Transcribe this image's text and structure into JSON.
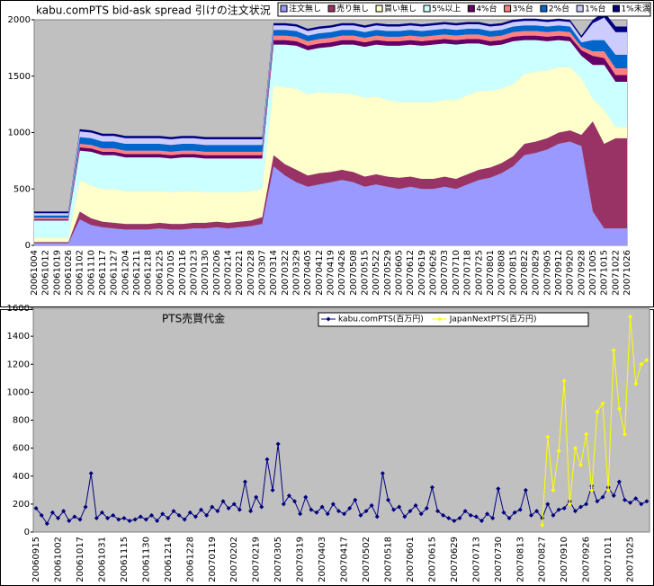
{
  "chart_data": [
    {
      "type": "stacked-area",
      "title": "kabu.comPTS bid-ask spread 引けの注文状況",
      "categories": [
        "20061004",
        "20061012",
        "20061019",
        "20061026",
        "20061102",
        "20061110",
        "20061117",
        "20061127",
        "20061204",
        "20061211",
        "20061218",
        "20061225",
        "20070105",
        "20070116",
        "20070123",
        "20070130",
        "20070206",
        "20070214",
        "20070221",
        "20070228",
        "20070307",
        "20070314",
        "20070322",
        "20070329",
        "20070405",
        "20070412",
        "20070419",
        "20070426",
        "20070508",
        "20070515",
        "20070522",
        "20070529",
        "20070605",
        "20070612",
        "20070619",
        "20070626",
        "20070703",
        "20070710",
        "20070718",
        "20070725",
        "20070801",
        "20070808",
        "20070815",
        "20070822",
        "20070829",
        "20070905",
        "20070912",
        "20070920",
        "20070928",
        "20071005",
        "20071015",
        "20071022",
        "20071026"
      ],
      "ylim": [
        0,
        2000
      ],
      "yticks": [
        0,
        500,
        1000,
        1500,
        2000
      ],
      "grid": false,
      "legend": "top-right",
      "series": [
        {
          "name": "注文無し",
          "color": "#9999ff",
          "values": [
            20,
            20,
            20,
            20,
            230,
            180,
            160,
            150,
            140,
            140,
            140,
            150,
            140,
            140,
            150,
            150,
            160,
            150,
            160,
            170,
            190,
            700,
            620,
            560,
            520,
            540,
            560,
            580,
            560,
            520,
            540,
            520,
            500,
            520,
            500,
            500,
            520,
            500,
            540,
            580,
            600,
            640,
            700,
            800,
            820,
            850,
            900,
            920,
            880,
            300,
            150,
            150,
            150
          ]
        },
        {
          "name": "売り無し",
          "color": "#993366",
          "values": [
            10,
            10,
            10,
            10,
            70,
            60,
            50,
            50,
            50,
            50,
            50,
            50,
            50,
            50,
            50,
            50,
            50,
            50,
            50,
            50,
            60,
            100,
            100,
            110,
            100,
            100,
            90,
            90,
            90,
            90,
            90,
            90,
            100,
            90,
            90,
            90,
            90,
            90,
            90,
            90,
            90,
            90,
            90,
            100,
            100,
            100,
            100,
            100,
            100,
            800,
            750,
            800,
            800
          ]
        },
        {
          "name": "買い無し",
          "color": "#ffffcc",
          "values": [
            40,
            40,
            40,
            40,
            280,
            290,
            290,
            300,
            290,
            290,
            290,
            280,
            280,
            290,
            280,
            270,
            260,
            270,
            260,
            260,
            250,
            620,
            680,
            720,
            720,
            720,
            700,
            680,
            690,
            700,
            690,
            680,
            670,
            660,
            680,
            680,
            680,
            700,
            700,
            700,
            680,
            660,
            640,
            620,
            620,
            600,
            580,
            560,
            500,
            200,
            300,
            100,
            100
          ]
        },
        {
          "name": "5%以上",
          "color": "#ccffff",
          "values": [
            150,
            150,
            150,
            150,
            260,
            300,
            300,
            300,
            300,
            300,
            300,
            300,
            300,
            300,
            300,
            300,
            300,
            300,
            300,
            290,
            270,
            360,
            380,
            380,
            390,
            390,
            410,
            430,
            440,
            450,
            460,
            480,
            500,
            510,
            500,
            510,
            500,
            490,
            460,
            420,
            400,
            390,
            380,
            300,
            280,
            260,
            240,
            230,
            200,
            300,
            400,
            400,
            400
          ]
        },
        {
          "name": "4%台",
          "color": "#660066",
          "values": [
            10,
            10,
            10,
            10,
            30,
            30,
            30,
            30,
            30,
            30,
            30,
            30,
            30,
            30,
            30,
            30,
            30,
            30,
            30,
            30,
            30,
            40,
            40,
            40,
            40,
            40,
            40,
            40,
            40,
            40,
            40,
            40,
            40,
            40,
            40,
            40,
            40,
            40,
            40,
            40,
            40,
            40,
            40,
            40,
            40,
            40,
            40,
            40,
            50,
            80,
            60,
            60,
            60
          ]
        },
        {
          "name": "3%台",
          "color": "#ff8080",
          "values": [
            15,
            15,
            15,
            15,
            30,
            30,
            30,
            30,
            30,
            30,
            30,
            30,
            30,
            30,
            30,
            30,
            30,
            30,
            30,
            30,
            30,
            40,
            40,
            40,
            40,
            40,
            40,
            40,
            40,
            40,
            40,
            40,
            40,
            40,
            40,
            40,
            40,
            40,
            40,
            40,
            40,
            40,
            40,
            40,
            40,
            40,
            40,
            40,
            30,
            40,
            60,
            60,
            60
          ]
        },
        {
          "name": "2%台",
          "color": "#0066cc",
          "values": [
            20,
            20,
            20,
            20,
            60,
            60,
            60,
            60,
            60,
            60,
            60,
            60,
            60,
            60,
            60,
            60,
            60,
            60,
            60,
            60,
            60,
            50,
            50,
            50,
            50,
            50,
            50,
            50,
            50,
            50,
            50,
            50,
            50,
            50,
            50,
            50,
            50,
            50,
            50,
            50,
            50,
            50,
            50,
            50,
            50,
            50,
            50,
            50,
            40,
            100,
            100,
            120,
            120
          ]
        },
        {
          "name": "1%台",
          "color": "#ccccff",
          "values": [
            20,
            20,
            20,
            20,
            50,
            50,
            50,
            50,
            50,
            50,
            50,
            50,
            50,
            50,
            50,
            50,
            50,
            50,
            50,
            50,
            50,
            40,
            40,
            40,
            40,
            40,
            40,
            40,
            40,
            40,
            40,
            40,
            40,
            40,
            40,
            40,
            40,
            40,
            40,
            40,
            40,
            40,
            40,
            40,
            40,
            40,
            40,
            40,
            40,
            150,
            200,
            200,
            200
          ]
        },
        {
          "name": "1%未満",
          "color": "#000080",
          "values": [
            15,
            15,
            15,
            15,
            20,
            20,
            20,
            20,
            20,
            20,
            20,
            20,
            20,
            20,
            20,
            20,
            20,
            20,
            20,
            20,
            20,
            20,
            20,
            20,
            20,
            20,
            20,
            20,
            20,
            20,
            20,
            20,
            20,
            20,
            20,
            20,
            20,
            20,
            20,
            20,
            20,
            20,
            20,
            20,
            20,
            20,
            20,
            20,
            20,
            30,
            50,
            50,
            50
          ]
        }
      ]
    },
    {
      "type": "line",
      "title": "PTS売買代金",
      "categories": [
        "20060915",
        null,
        null,
        null,
        "20061002",
        null,
        null,
        null,
        "20061017",
        null,
        null,
        null,
        "20061031",
        null,
        null,
        null,
        "20061115",
        null,
        null,
        null,
        "20061130",
        null,
        null,
        null,
        "20061214",
        null,
        null,
        null,
        "20061228",
        null,
        null,
        null,
        "20070119",
        null,
        null,
        null,
        "20070202",
        null,
        null,
        null,
        "20070219",
        null,
        null,
        null,
        "20070305",
        null,
        null,
        null,
        "20070319",
        null,
        null,
        null,
        "20070403",
        null,
        null,
        null,
        "20070417",
        null,
        null,
        null,
        "20070502",
        null,
        null,
        null,
        "20070518",
        null,
        null,
        null,
        "20070601",
        null,
        null,
        null,
        "20070615",
        null,
        null,
        null,
        "20070629",
        null,
        null,
        null,
        "20070713",
        null,
        null,
        null,
        "20070730",
        null,
        null,
        null,
        "20070813",
        null,
        null,
        null,
        "20070827",
        null,
        null,
        null,
        "20070910",
        null,
        null,
        null,
        "20070926",
        null,
        null,
        null,
        "20071011",
        null,
        null,
        null,
        "20071025",
        null,
        null,
        null
      ],
      "ylim": [
        0,
        1600
      ],
      "yticks": [
        0,
        200,
        400,
        600,
        800,
        1000,
        1200,
        1400,
        1600
      ],
      "grid": false,
      "legend": "top-right",
      "series": [
        {
          "name": "kabu.comPTS(百万円)",
          "color": "#000080",
          "values": [
            170,
            120,
            60,
            140,
            100,
            150,
            80,
            110,
            90,
            180,
            420,
            100,
            140,
            100,
            120,
            90,
            100,
            80,
            90,
            110,
            90,
            120,
            80,
            130,
            100,
            150,
            120,
            90,
            140,
            110,
            160,
            120,
            180,
            150,
            220,
            170,
            200,
            160,
            360,
            150,
            250,
            180,
            520,
            300,
            630,
            200,
            260,
            220,
            130,
            250,
            160,
            140,
            180,
            130,
            200,
            150,
            130,
            170,
            230,
            120,
            150,
            190,
            110,
            420,
            230,
            160,
            180,
            110,
            150,
            190,
            130,
            170,
            320,
            150,
            120,
            100,
            80,
            100,
            150,
            120,
            110,
            80,
            130,
            100,
            310,
            140,
            100,
            140,
            160,
            300,
            120,
            150,
            100,
            200,
            120,
            160,
            170,
            220,
            150,
            180,
            200,
            330,
            220,
            250,
            320,
            260,
            360,
            230,
            210,
            240,
            200,
            220
          ]
        },
        {
          "name": "JapanNextPTS(百万円)",
          "color": "#ffff00",
          "values": [
            null,
            null,
            null,
            null,
            null,
            null,
            null,
            null,
            null,
            null,
            null,
            null,
            null,
            null,
            null,
            null,
            null,
            null,
            null,
            null,
            null,
            null,
            null,
            null,
            null,
            null,
            null,
            null,
            null,
            null,
            null,
            null,
            null,
            null,
            null,
            null,
            null,
            null,
            null,
            null,
            null,
            null,
            null,
            null,
            null,
            null,
            null,
            null,
            null,
            null,
            null,
            null,
            null,
            null,
            null,
            null,
            null,
            null,
            null,
            null,
            null,
            null,
            null,
            null,
            null,
            null,
            null,
            null,
            null,
            null,
            null,
            null,
            null,
            null,
            null,
            null,
            null,
            null,
            null,
            null,
            null,
            null,
            null,
            null,
            null,
            null,
            null,
            null,
            null,
            null,
            null,
            null,
            50,
            680,
            300,
            580,
            1080,
            200,
            600,
            480,
            700,
            300,
            860,
            920,
            300,
            1300,
            880,
            700,
            1540,
            1060,
            1200,
            1230
          ]
        }
      ]
    }
  ]
}
